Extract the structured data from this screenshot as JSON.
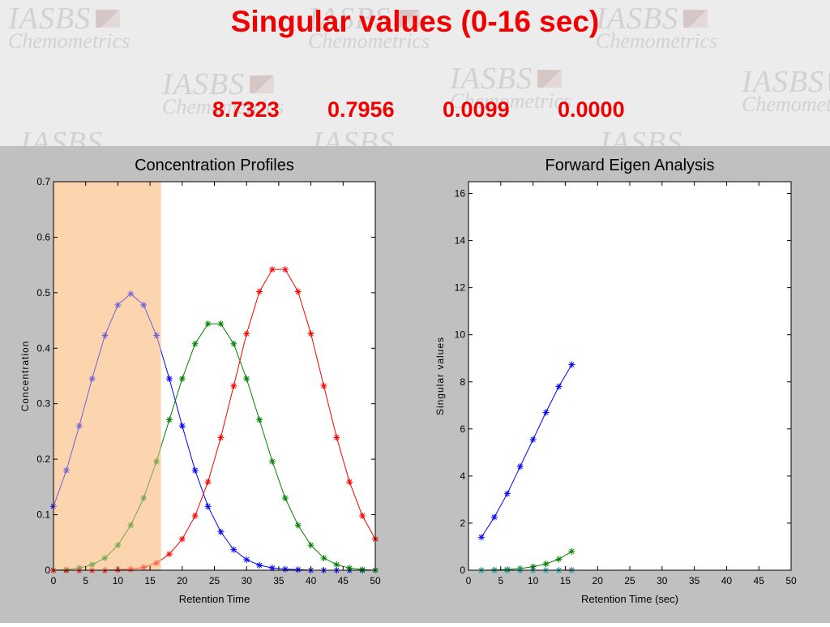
{
  "slide": {
    "title": "Singular values  (0-16 sec)",
    "values": [
      "8.7323",
      "0.7956",
      "0.0099",
      "0.0000"
    ],
    "watermark_top": "IASBS",
    "watermark_bottom": "Chemometrics"
  },
  "colors": {
    "title_red": "#f00000",
    "figure_bg": "#c0c0c0",
    "highlight": "#fcd5b0",
    "series_purple": "#a27bd0",
    "series_blue": "#0000ff",
    "series_green": "#008000",
    "series_red": "#ff0000",
    "series_cyan": "#00bfbf"
  },
  "chart_data": [
    {
      "type": "line",
      "title": "Concentration Profiles",
      "xlabel": "Retention Time",
      "ylabel": "Concentration",
      "xlim": [
        0,
        50
      ],
      "ylim": [
        0,
        0.7
      ],
      "xticks": [
        0,
        5,
        10,
        15,
        20,
        25,
        30,
        35,
        40,
        45,
        50
      ],
      "yticks": [
        0,
        0.1,
        0.2,
        0.3,
        0.4,
        0.5,
        0.6,
        0.7
      ],
      "marker": "asterisk",
      "grid": false,
      "highlight_region": [
        0,
        16.7
      ],
      "x": [
        0,
        2,
        4,
        6,
        8,
        10,
        12,
        14,
        16,
        18,
        20,
        22,
        24,
        26,
        28,
        30,
        32,
        34,
        36,
        38,
        40,
        42,
        44,
        46,
        48,
        50
      ],
      "series": [
        {
          "color": "#0000ff",
          "values": [
            0.115,
            0.18,
            0.26,
            0.345,
            0.423,
            0.478,
            0.498,
            0.478,
            0.423,
            0.345,
            0.26,
            0.18,
            0.115,
            0.069,
            0.037,
            0.019,
            0.009,
            0.004,
            0.002,
            0.001,
            0.0,
            0.0,
            0.0,
            0.0,
            0.0,
            0.0
          ]
        },
        {
          "color": "#008000",
          "values": [
            0.0,
            0.001,
            0.004,
            0.01,
            0.022,
            0.045,
            0.081,
            0.13,
            0.196,
            0.271,
            0.345,
            0.408,
            0.444,
            0.444,
            0.408,
            0.345,
            0.271,
            0.196,
            0.13,
            0.081,
            0.045,
            0.022,
            0.01,
            0.004,
            0.001,
            0.0
          ]
        },
        {
          "color": "#ff0000",
          "values": [
            0.0,
            0.0,
            0.0,
            0.0,
            0.0,
            0.001,
            0.002,
            0.005,
            0.013,
            0.029,
            0.056,
            0.098,
            0.159,
            0.239,
            0.332,
            0.426,
            0.502,
            0.542,
            0.542,
            0.502,
            0.426,
            0.332,
            0.239,
            0.159,
            0.098,
            0.056
          ]
        }
      ]
    },
    {
      "type": "line",
      "title": "Forward Eigen Analysis",
      "xlabel": "Retention Time (sec)",
      "ylabel": "Singular values",
      "xlim": [
        0,
        50
      ],
      "ylim": [
        0,
        16.5
      ],
      "xticks": [
        0,
        5,
        10,
        15,
        20,
        25,
        30,
        35,
        40,
        45,
        50
      ],
      "yticks": [
        0,
        2,
        4,
        6,
        8,
        10,
        12,
        14,
        16
      ],
      "marker": "asterisk",
      "grid": false,
      "x": [
        2,
        4,
        6,
        8,
        10,
        12,
        14,
        16
      ],
      "series": [
        {
          "color": "#0000ff",
          "values": [
            1.4,
            2.25,
            3.25,
            4.4,
            5.55,
            6.7,
            7.8,
            8.73
          ]
        },
        {
          "color": "#008000",
          "values": [
            0.0,
            0.01,
            0.03,
            0.07,
            0.15,
            0.27,
            0.47,
            0.8
          ]
        },
        {
          "color": "#ff0000",
          "values": [
            0.0,
            0.0,
            0.0,
            0.0,
            0.0,
            0.0,
            0.0,
            0.01
          ]
        },
        {
          "color": "#00bfbf",
          "values": [
            0.0,
            0.0,
            0.0,
            0.0,
            0.0,
            0.0,
            0.0,
            0.0
          ]
        }
      ]
    }
  ]
}
